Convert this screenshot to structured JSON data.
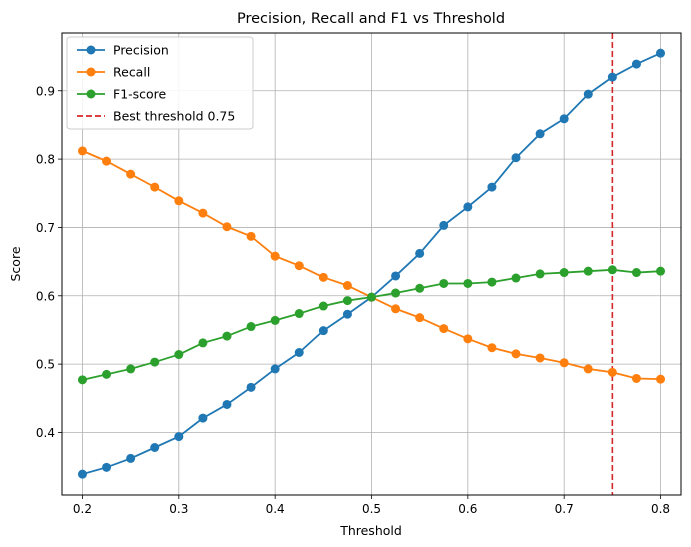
{
  "chart_data": {
    "type": "line",
    "title": "Precision, Recall and F1 vs Threshold",
    "xlabel": "Threshold",
    "ylabel": "Score",
    "xlim": [
      0.17875,
      0.82125
    ],
    "ylim": [
      0.3085,
      0.9845
    ],
    "xticks": [
      0.2,
      0.3,
      0.4,
      0.5,
      0.6,
      0.7,
      0.8
    ],
    "xtick_labels": [
      "0.2",
      "0.3",
      "0.4",
      "0.5",
      "0.6",
      "0.7",
      "0.8"
    ],
    "yticks": [
      0.4,
      0.5,
      0.6,
      0.7,
      0.8,
      0.9
    ],
    "ytick_labels": [
      "0.4",
      "0.5",
      "0.6",
      "0.7",
      "0.8",
      "0.9"
    ],
    "grid": true,
    "legend_position": "top-left",
    "x": [
      0.2,
      0.225,
      0.25,
      0.275,
      0.3,
      0.325,
      0.35,
      0.375,
      0.4,
      0.425,
      0.45,
      0.475,
      0.5,
      0.525,
      0.55,
      0.575,
      0.6,
      0.625,
      0.65,
      0.675,
      0.7,
      0.725,
      0.75,
      0.775,
      0.8
    ],
    "series": [
      {
        "name": "Precision",
        "color": "#1f77b4",
        "values": [
          0.339,
          0.349,
          0.362,
          0.378,
          0.394,
          0.421,
          0.441,
          0.466,
          0.493,
          0.517,
          0.549,
          0.573,
          0.598,
          0.629,
          0.662,
          0.703,
          0.73,
          0.759,
          0.802,
          0.837,
          0.859,
          0.895,
          0.92,
          0.939,
          0.955
        ]
      },
      {
        "name": "Recall",
        "color": "#ff7f0e",
        "values": [
          0.812,
          0.797,
          0.778,
          0.759,
          0.739,
          0.721,
          0.701,
          0.687,
          0.658,
          0.644,
          0.627,
          0.615,
          0.598,
          0.581,
          0.568,
          0.552,
          0.537,
          0.524,
          0.515,
          0.509,
          0.502,
          0.493,
          0.488,
          0.479,
          0.478
        ]
      },
      {
        "name": "F1-score",
        "color": "#2ca02c",
        "values": [
          0.477,
          0.485,
          0.493,
          0.503,
          0.514,
          0.531,
          0.541,
          0.555,
          0.564,
          0.574,
          0.585,
          0.593,
          0.598,
          0.604,
          0.611,
          0.618,
          0.618,
          0.62,
          0.626,
          0.632,
          0.634,
          0.636,
          0.638,
          0.634,
          0.636
        ]
      }
    ],
    "vline": {
      "x": 0.75,
      "label": "Best threshold 0.75",
      "color": "#d62728",
      "style": "dashed"
    }
  }
}
